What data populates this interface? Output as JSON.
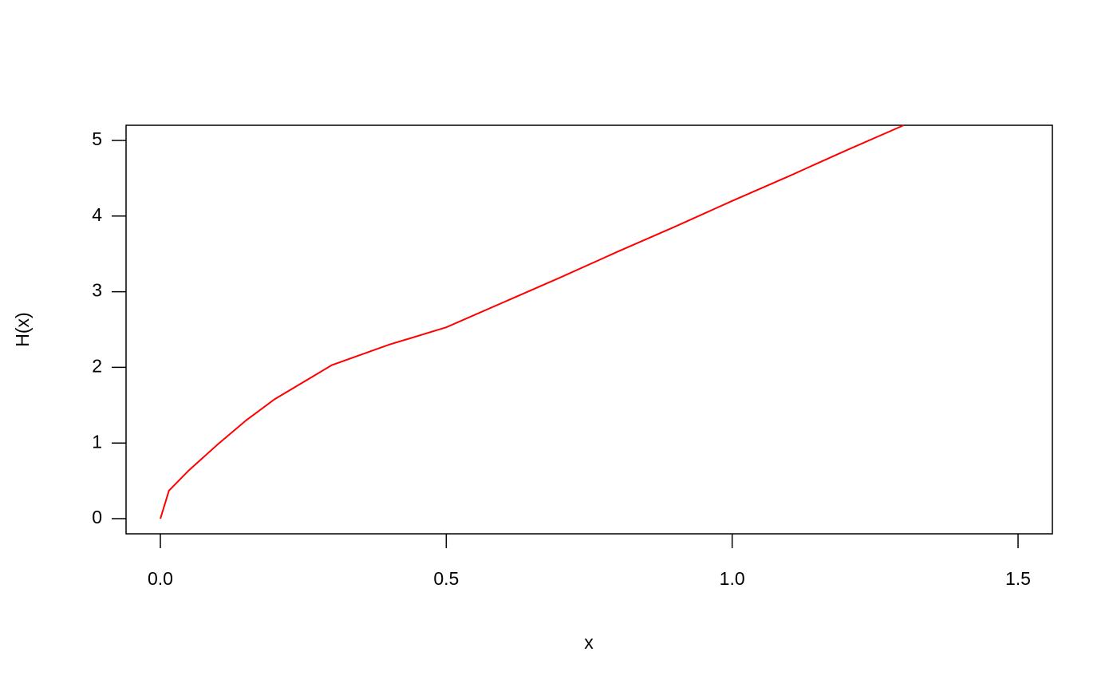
{
  "chart_data": {
    "type": "line",
    "x_label": "x",
    "y_label": "H(x)",
    "x": [
      0,
      0.015,
      0.05,
      0.1,
      0.15,
      0.2,
      0.3,
      0.4,
      0.5,
      0.6,
      0.7,
      0.8,
      0.9,
      1.0,
      1.1,
      1.2,
      1.3
    ],
    "series": [
      {
        "color": "#ff0000",
        "values": [
          0,
          0.37,
          0.64,
          0.98,
          1.3,
          1.58,
          2.03,
          2.3,
          2.53,
          2.86,
          3.19,
          3.53,
          3.86,
          4.2,
          4.53,
          4.87,
          5.2
        ]
      }
    ],
    "xlim": [
      -0.06,
      1.56
    ],
    "xticks": [
      {
        "value": 0,
        "label": "0.0"
      },
      0.5,
      {
        "value": 1,
        "label": "1.0"
      },
      1.5
    ],
    "ylim": [
      -0.2,
      5.2
    ],
    "yticks": [
      0,
      1,
      2,
      3,
      4,
      5
    ],
    "grid": false
  }
}
